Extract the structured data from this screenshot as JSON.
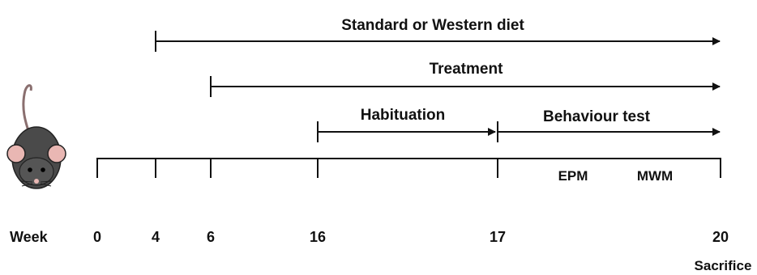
{
  "phases": [
    {
      "label": "Standard or Western diet",
      "start_week": 4,
      "end": "open"
    },
    {
      "label": "Treatment",
      "start_week": 6,
      "end": "open"
    },
    {
      "label": "Habituation",
      "start_week": 16,
      "end_week": 17
    },
    {
      "label": "Behaviour test",
      "start_week": 17,
      "end": "open"
    }
  ],
  "timeline": {
    "axis_label": "Week",
    "ticks": [
      "0",
      "4",
      "6",
      "16",
      "17",
      "20"
    ],
    "end_label": "Sacrifice"
  },
  "tests": [
    "EPM",
    "MWM"
  ],
  "icon": "mouse-icon",
  "colors": {
    "line": "#111111",
    "mouse_body": "#4a4a4a",
    "mouse_ear": "#e9b7b3"
  }
}
